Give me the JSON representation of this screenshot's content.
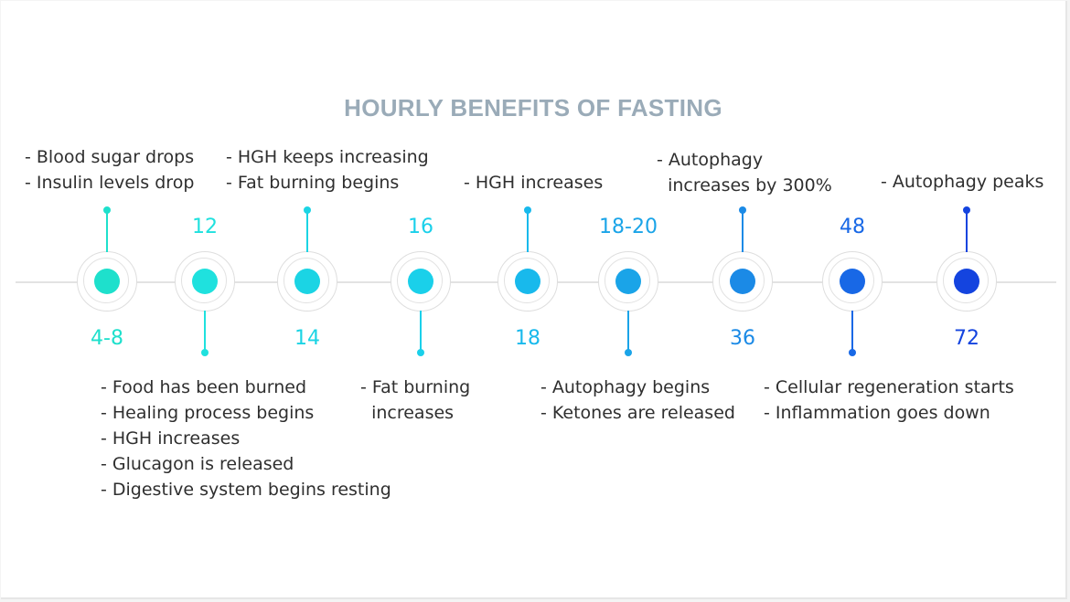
{
  "title": "HOURLY BENEFITS OF FASTING",
  "colors": {
    "axis": "#e3e3e3",
    "title": "#9aabb8",
    "text": "#2f2f2f"
  },
  "milestones": [
    {
      "hour": "4-8",
      "color": "#1ee0cc",
      "notes": [
        "- Blood sugar drops",
        "- Insulin levels drop"
      ]
    },
    {
      "hour": "12",
      "color": "#1fe1de",
      "notes": [
        "- Food has been burned",
        "- Healing process begins",
        "- HGH increases",
        "- Glucagon is released",
        "- Digestive system begins resting"
      ]
    },
    {
      "hour": "14",
      "color": "#1bd4e4",
      "notes": [
        "- HGH keeps increasing",
        "- Fat burning begins"
      ]
    },
    {
      "hour": "16",
      "color": "#1ad0ea",
      "notes": [
        "- Fat burning",
        "  increases"
      ]
    },
    {
      "hour": "18",
      "color": "#18b9ec",
      "notes": [
        "- HGH increases"
      ]
    },
    {
      "hour": "18-20",
      "color": "#1aa4e8",
      "notes": [
        "- Autophagy begins",
        "- Ketones are released"
      ]
    },
    {
      "hour": "36",
      "color": "#1b8ae6",
      "notes": [
        "- Autophagy",
        "  increases by 300%"
      ]
    },
    {
      "hour": "48",
      "color": "#1868e6",
      "notes": [
        "- Cellular regeneration starts",
        "- Inflammation goes down"
      ]
    },
    {
      "hour": "72",
      "color": "#1444df",
      "notes": [
        "- Autophagy peaks"
      ]
    }
  ]
}
